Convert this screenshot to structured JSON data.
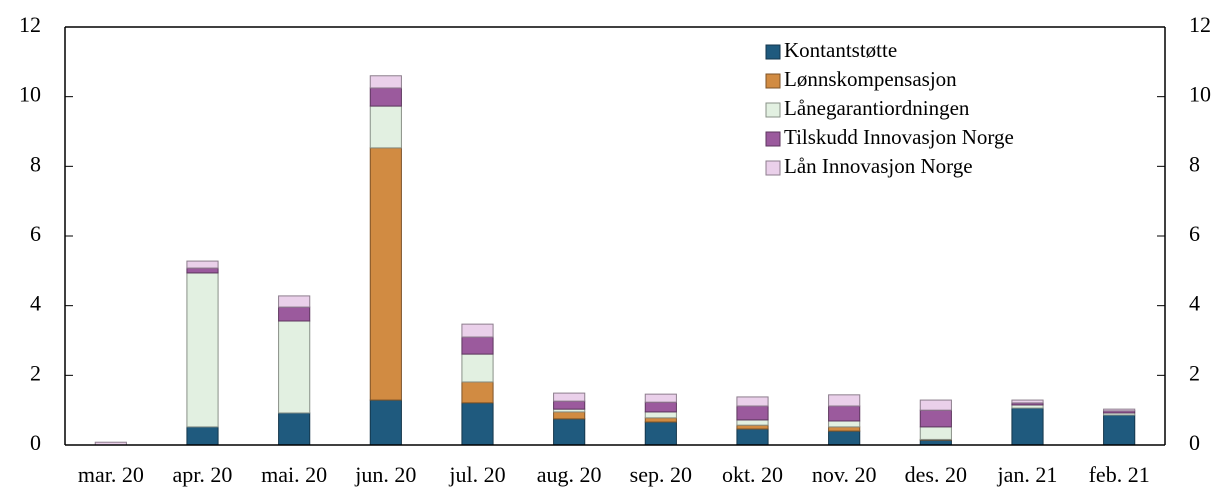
{
  "chart_data": {
    "type": "stacked_bar",
    "categories": [
      "mar. 20",
      "apr. 20",
      "mai. 20",
      "jun. 20",
      "jul. 20",
      "aug. 20",
      "sep. 20",
      "okt. 20",
      "nov. 20",
      "des. 20",
      "jan. 21",
      "feb. 21"
    ],
    "series": [
      {
        "name": "Kontantstøtte",
        "color": "#1f5a7e",
        "values": [
          0,
          0.52,
          0.92,
          1.29,
          1.21,
          0.75,
          0.66,
          0.46,
          0.4,
          0.14,
          1.06,
          0.86
        ]
      },
      {
        "name": "Lønnskompensasjon",
        "color": "#d18b42",
        "values": [
          0,
          0,
          0,
          7.24,
          0.6,
          0.2,
          0.12,
          0.11,
          0.12,
          0.02,
          0,
          0
        ]
      },
      {
        "name": "Lånegarantiordningen",
        "color": "#e2f0e1",
        "values": [
          0,
          4.42,
          2.64,
          1.2,
          0.8,
          0.08,
          0.17,
          0.15,
          0.17,
          0.36,
          0.09,
          0.06
        ]
      },
      {
        "name": "Tilskudd Innovasjon Norge",
        "color": "#9b5a9d",
        "values": [
          0,
          0.14,
          0.4,
          0.52,
          0.49,
          0.23,
          0.28,
          0.4,
          0.43,
          0.48,
          0.06,
          0.06
        ]
      },
      {
        "name": "Lån Innovasjon Norge",
        "color": "#ead0ea",
        "values": [
          0.08,
          0.2,
          0.32,
          0.35,
          0.37,
          0.23,
          0.23,
          0.26,
          0.32,
          0.29,
          0.08,
          0.05
        ]
      }
    ],
    "ylim": [
      0,
      12
    ],
    "yticks": [
      0,
      2,
      4,
      6,
      8,
      10,
      12
    ],
    "y2lim": [
      0,
      12
    ],
    "y2ticks": [
      0,
      2,
      4,
      6,
      8,
      10,
      12
    ],
    "legend": "top-right"
  }
}
